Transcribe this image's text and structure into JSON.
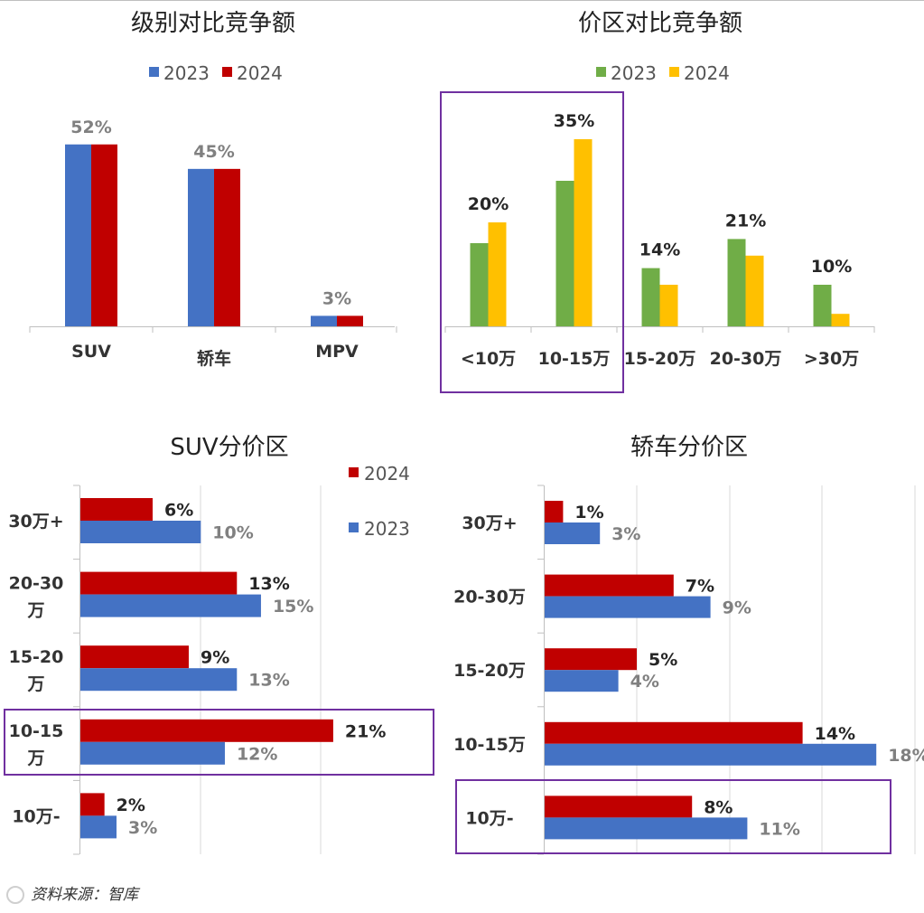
{
  "colors": {
    "blue": "#4472C4",
    "red": "#C00000",
    "green": "#70AD47",
    "yellow": "#FFC000",
    "highlight": "#7030A0",
    "label_gray": "#808080",
    "label_dark": "#262626"
  },
  "source_note": "资料来源：智库",
  "chart_data": [
    {
      "id": "level",
      "type": "bar",
      "title": "级别对比竞争额",
      "categories": [
        "SUV",
        "轿车",
        "MPV"
      ],
      "series": [
        {
          "name": "2023",
          "values": [
            52,
            45,
            3
          ]
        },
        {
          "name": "2024",
          "values": [
            52,
            45,
            3
          ]
        }
      ],
      "data_labels": [
        "52%",
        "45%",
        "3%"
      ],
      "ylim": [
        0,
        60
      ]
    },
    {
      "id": "price",
      "type": "bar",
      "title": "价区对比竞争额",
      "categories": [
        "<10万",
        "10-15万",
        "15-20万",
        "20-30万",
        ">30万"
      ],
      "series": [
        {
          "name": "2023",
          "values": [
            20,
            35,
            14,
            21,
            10
          ]
        },
        {
          "name": "2024",
          "values": [
            25,
            45,
            10,
            17,
            3
          ]
        }
      ],
      "data_labels": [
        "20%",
        "35%",
        "14%",
        "21%",
        "10%"
      ],
      "highlight_categories": [
        "<10万",
        "10-15万"
      ],
      "ylim": [
        0,
        60
      ]
    },
    {
      "id": "suv",
      "type": "bar",
      "orientation": "horizontal",
      "title": "SUV分价区",
      "categories": [
        "30万+",
        "20-30\n万",
        "15-20\n万",
        "10-15\n万",
        "10万-"
      ],
      "series": [
        {
          "name": "2024",
          "values": [
            6,
            13,
            9,
            21,
            2
          ]
        },
        {
          "name": "2023",
          "values": [
            10,
            15,
            13,
            12,
            3
          ]
        }
      ],
      "highlight_categories": [
        "10-15\n万"
      ],
      "xlim": [
        0,
        25
      ],
      "gridlines": true
    },
    {
      "id": "sedan",
      "type": "bar",
      "orientation": "horizontal",
      "title": "轿车分价区",
      "categories": [
        "30万+",
        "20-30万",
        "15-20万",
        "10-15万",
        "10万-"
      ],
      "series": [
        {
          "name": "2024",
          "values": [
            1,
            7,
            5,
            14,
            8
          ]
        },
        {
          "name": "2023",
          "values": [
            3,
            9,
            4,
            18,
            11
          ]
        }
      ],
      "highlight_categories": [
        "10万-"
      ],
      "xlim": [
        0,
        18
      ],
      "gridlines": true
    }
  ]
}
